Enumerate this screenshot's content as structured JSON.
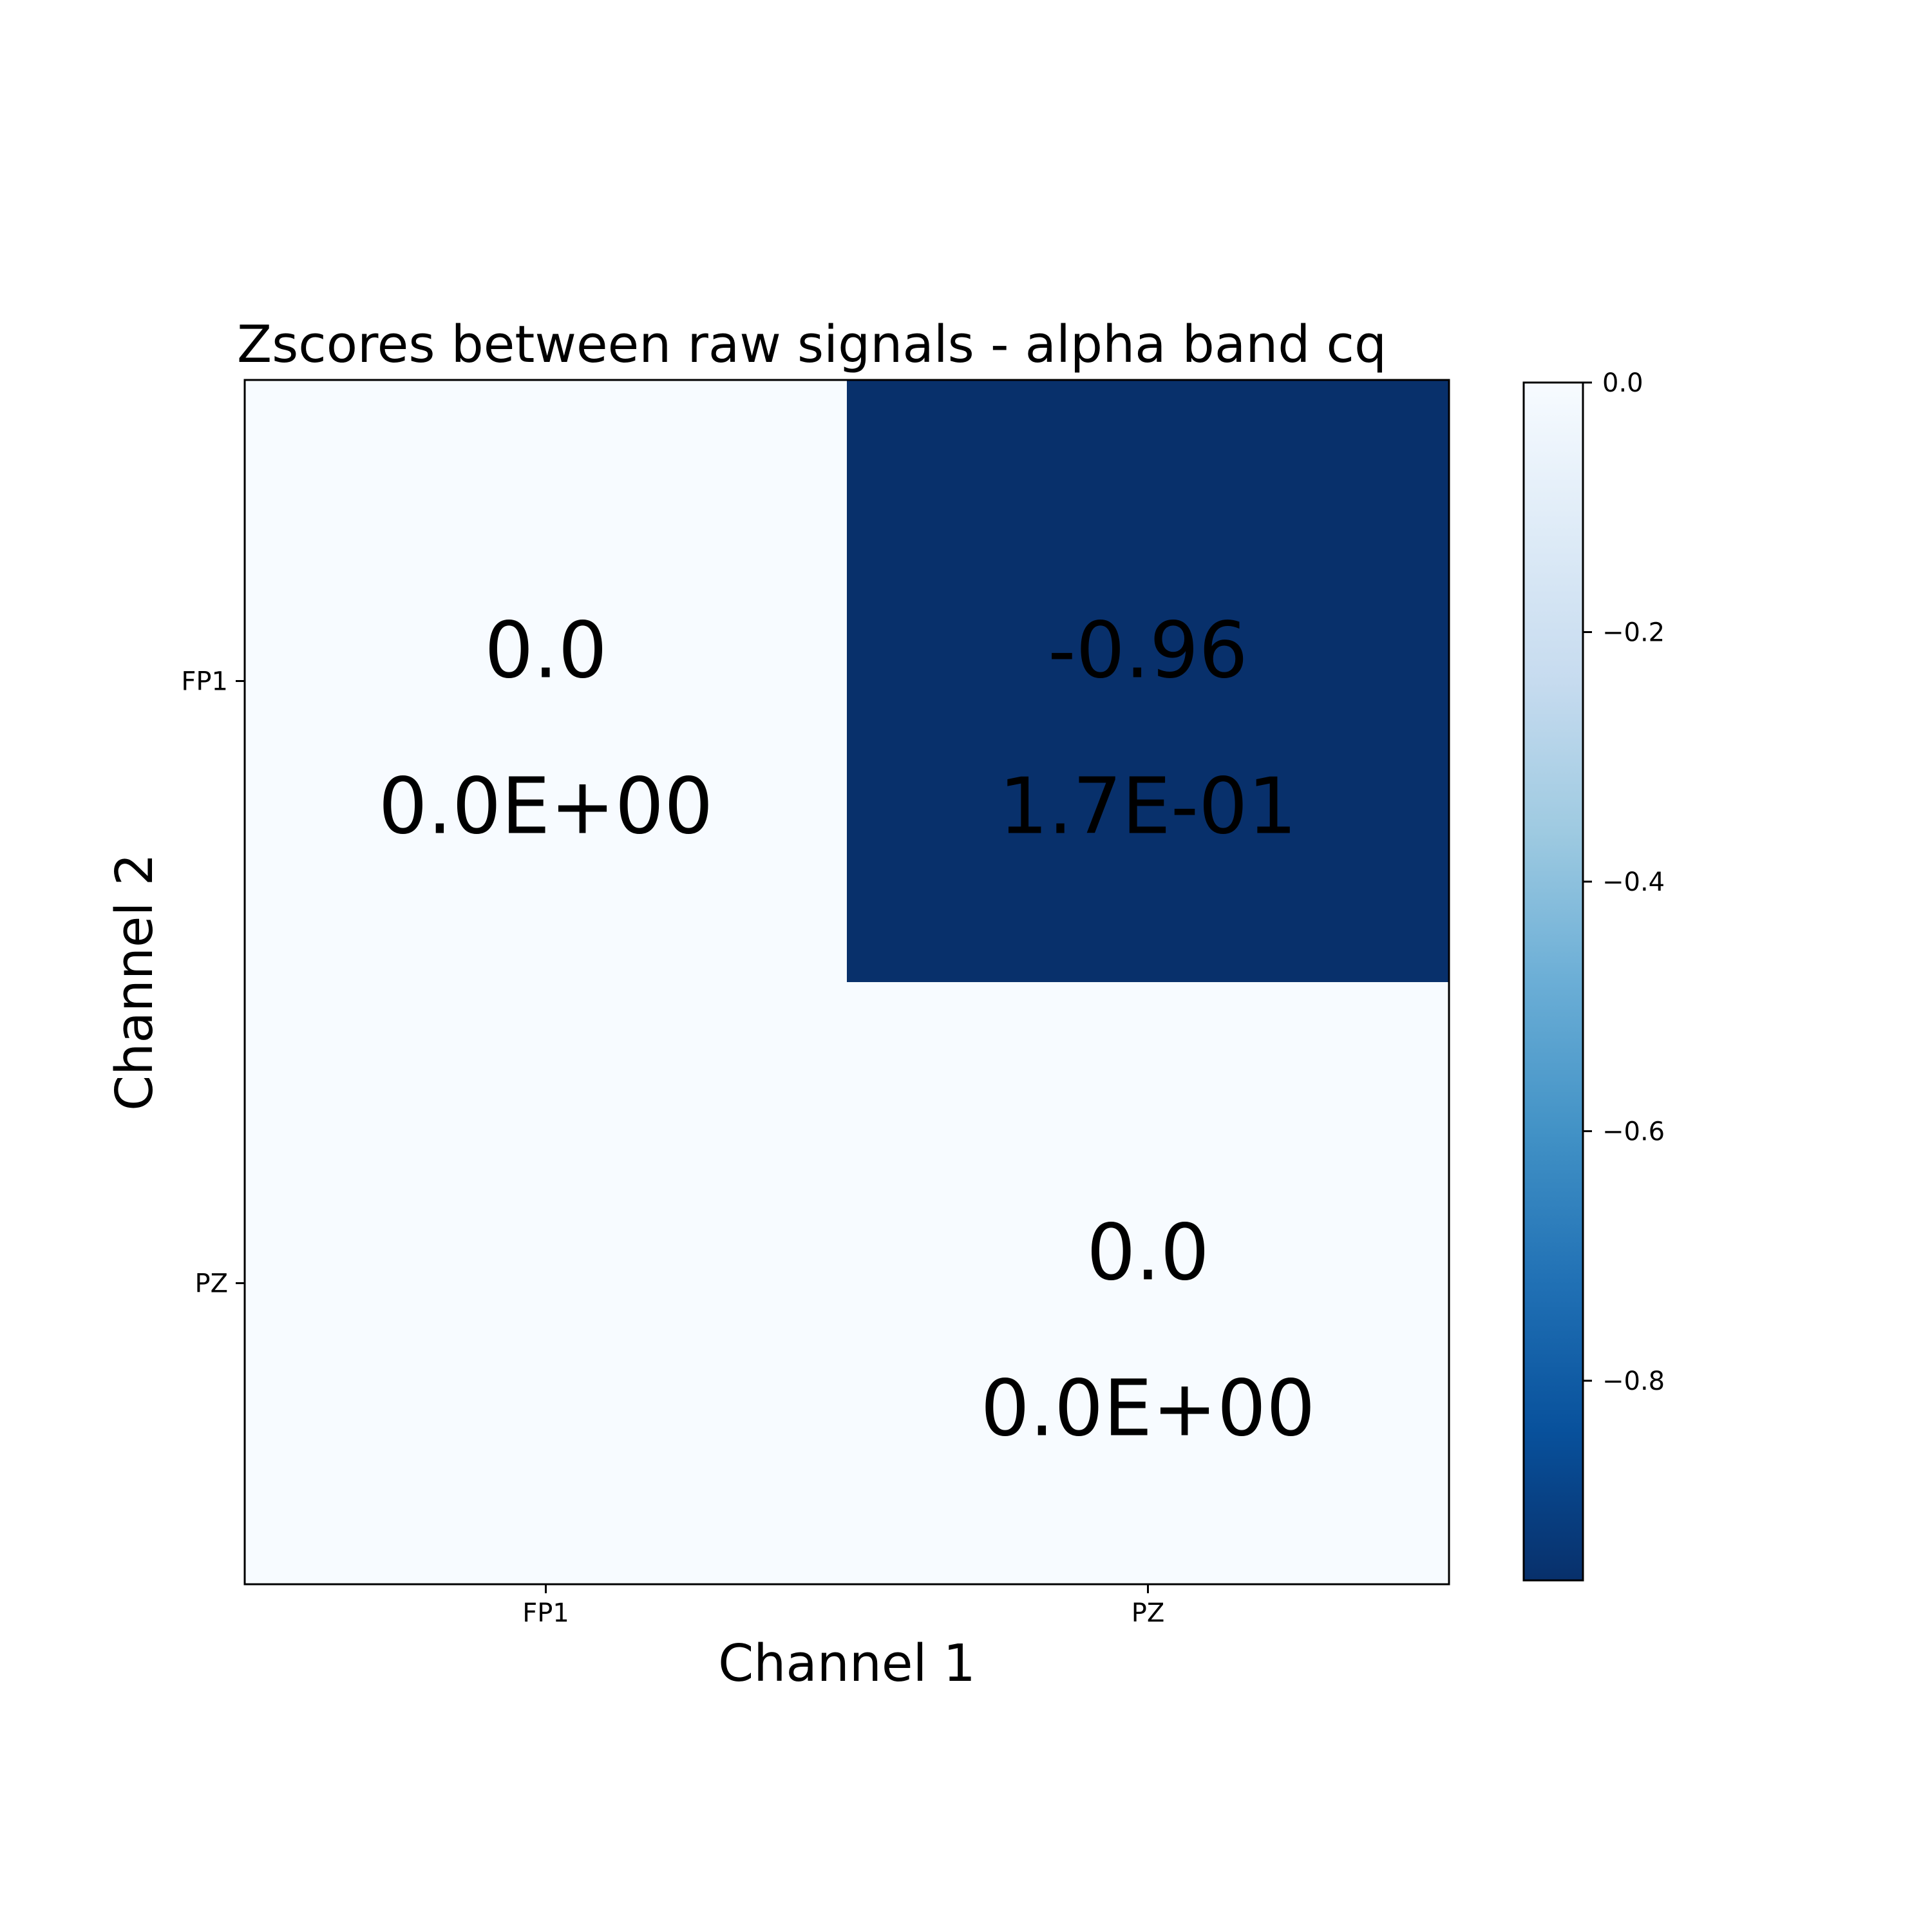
{
  "chart_data": {
    "type": "heatmap",
    "title": "Zscores between raw signals - alpha band cq",
    "xlabel": "Channel 1",
    "ylabel": "Channel 2",
    "x_categories": [
      "FP1",
      "PZ"
    ],
    "y_categories": [
      "FP1",
      "PZ"
    ],
    "cells": [
      {
        "row": 0,
        "col": 0,
        "value": 0.0,
        "label": "0.0",
        "sublabel": "0.0E+00"
      },
      {
        "row": 0,
        "col": 1,
        "value": -0.96,
        "label": "-0.96",
        "sublabel": "1.7E-01"
      },
      {
        "row": 1,
        "col": 0,
        "value": 0.0,
        "label": "",
        "sublabel": ""
      },
      {
        "row": 1,
        "col": 1,
        "value": 0.0,
        "label": "0.0",
        "sublabel": "0.0E+00"
      }
    ],
    "colormap": "Blues_r",
    "colorbar": {
      "range": [
        -0.96,
        0.0
      ],
      "ticks": [
        0.0,
        -0.2,
        -0.4,
        -0.6,
        -0.8
      ],
      "tick_labels": [
        "0.0",
        "−0.2",
        "−0.4",
        "−0.6",
        "−0.8"
      ]
    },
    "colors": {
      "light": "#f7fbff",
      "dark": "#08306b"
    }
  }
}
